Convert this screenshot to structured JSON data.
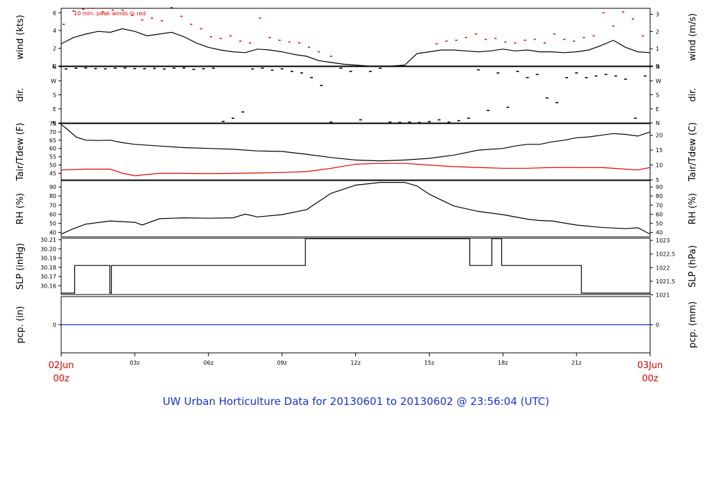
{
  "figure": {
    "title": "UW Urban Horticulture Data for 20130601  to  20130602 @ 23:56:04  (UTC)",
    "colors": {
      "title": "#1c2fd6",
      "date_label": "#e00000",
      "peak_wind": "#e00000",
      "dewpoint": "#e00000",
      "precip_line": "#1c2fd6",
      "line": "#000000"
    }
  },
  "x_axis": {
    "unit": "hours UTC",
    "range": [
      0,
      24
    ],
    "ticks": [
      {
        "x": 3,
        "label": "03z"
      },
      {
        "x": 6,
        "label": "06z"
      },
      {
        "x": 9,
        "label": "09z"
      },
      {
        "x": 12,
        "label": "12z"
      },
      {
        "x": 15,
        "label": "15z"
      },
      {
        "x": 18,
        "label": "18z"
      },
      {
        "x": 21,
        "label": "21z"
      }
    ],
    "start_label": {
      "date": "02Jun",
      "time": "00z"
    },
    "end_label": {
      "date": "03Jun",
      "time": "00z"
    }
  },
  "chart_data": [
    {
      "type": "line",
      "ylabel_left": "wind (kts)",
      "ylabel_right": "wind (m/s)",
      "annotation": "10 min. peak winds in red",
      "ylim": [
        0,
        6.5
      ],
      "left_ticks": [
        "0",
        "2",
        "4",
        "6"
      ],
      "right_ticks": [
        "0",
        "1",
        "2",
        "3"
      ],
      "series": [
        {
          "name": "wind speed",
          "x": [
            0,
            0.5,
            1,
            1.5,
            2,
            2.5,
            3,
            3.5,
            4,
            4.5,
            5,
            5.5,
            6,
            6.5,
            7,
            7.5,
            8,
            8.5,
            9,
            9.5,
            10,
            10.5,
            11,
            11.5,
            12,
            12.5,
            13,
            13.5,
            14,
            14.5,
            15,
            15.5,
            16,
            16.5,
            17,
            17.5,
            18,
            18.5,
            19,
            19.5,
            20,
            20.5,
            21,
            21.5,
            22,
            22.5,
            23,
            23.5,
            24
          ],
          "values": [
            2.5,
            3.2,
            3.6,
            3.9,
            3.8,
            4.2,
            3.9,
            3.4,
            3.6,
            3.8,
            3.3,
            2.6,
            2.1,
            1.8,
            1.6,
            1.5,
            1.9,
            1.8,
            1.6,
            1.3,
            1.1,
            0.6,
            0.4,
            0.2,
            0.1,
            0.0,
            0.0,
            0.0,
            0.1,
            1.4,
            1.6,
            1.8,
            1.8,
            1.7,
            1.6,
            1.7,
            1.9,
            1.7,
            1.8,
            1.6,
            1.6,
            1.5,
            1.6,
            1.8,
            2.3,
            2.9,
            2.1,
            1.6,
            1.5
          ]
        },
        {
          "name": "10 min. peak winds",
          "x": [
            0.1,
            0.5,
            0.9,
            1.3,
            1.7,
            2.1,
            2.5,
            2.9,
            3.3,
            3.7,
            4.1,
            4.5,
            4.9,
            5.3,
            5.7,
            6.1,
            6.5,
            6.9,
            7.3,
            7.7,
            8.1,
            8.5,
            8.9,
            9.3,
            9.7,
            10.1,
            10.5,
            11.0,
            15.3,
            15.7,
            16.1,
            16.5,
            16.9,
            17.3,
            17.7,
            18.1,
            18.5,
            18.9,
            19.3,
            19.7,
            20.1,
            20.5,
            20.9,
            21.3,
            21.7,
            22.1,
            22.5,
            22.9,
            23.3,
            23.7
          ],
          "values": [
            4.7,
            6.2,
            6.4,
            6.5,
            6.1,
            6.3,
            6.3,
            5.7,
            5.2,
            5.4,
            5.1,
            6.6,
            5.6,
            4.7,
            4.2,
            3.3,
            3.1,
            3.4,
            2.8,
            2.6,
            5.4,
            3.2,
            2.9,
            2.7,
            2.6,
            2.1,
            1.6,
            1.1,
            2.5,
            2.8,
            2.9,
            3.2,
            3.6,
            3.0,
            3.1,
            2.7,
            2.6,
            2.9,
            3.0,
            2.6,
            3.6,
            3.0,
            2.8,
            3.2,
            3.4,
            6.0,
            4.5,
            6.1,
            5.3,
            3.4
          ]
        }
      ]
    },
    {
      "type": "scatter",
      "ylabel_left": "dir.",
      "ylabel_right": "dir.",
      "ylim": [
        0,
        360
      ],
      "left_ticks": [
        "N",
        "W",
        "S",
        "E",
        "N"
      ],
      "right_ticks": [
        "N",
        "W",
        "S",
        "E",
        "N"
      ],
      "series": [
        {
          "name": "wind direction",
          "x": [
            0.2,
            0.6,
            1.0,
            1.4,
            1.8,
            2.2,
            2.6,
            3.0,
            3.4,
            3.8,
            4.2,
            4.6,
            5.0,
            5.4,
            5.8,
            6.2,
            6.6,
            7.0,
            7.4,
            7.8,
            8.2,
            8.6,
            9.0,
            9.4,
            9.8,
            10.2,
            10.6,
            11.0,
            11.4,
            11.8,
            12.2,
            12.6,
            13.0,
            13.4,
            13.8,
            14.2,
            14.6,
            15.0,
            15.4,
            15.8,
            16.2,
            16.6,
            17.0,
            17.4,
            17.8,
            18.2,
            18.6,
            19.0,
            19.4,
            19.8,
            20.2,
            20.6,
            21.0,
            21.4,
            21.8,
            22.2,
            22.6,
            23.0,
            23.4,
            23.8
          ],
          "values": [
            345,
            350,
            352,
            348,
            346,
            350,
            352,
            348,
            347,
            349,
            345,
            350,
            352,
            343,
            347,
            350,
            10,
            30,
            70,
            345,
            350,
            338,
            346,
            330,
            320,
            290,
            240,
            5,
            350,
            330,
            20,
            330,
            350,
            5,
            3,
            5,
            3,
            8,
            20,
            5,
            15,
            30,
            340,
            80,
            320,
            100,
            330,
            290,
            310,
            160,
            130,
            290,
            320,
            290,
            300,
            310,
            300,
            280,
            30,
            300
          ]
        }
      ]
    },
    {
      "type": "line",
      "ylabel_left": "Tair/Tdew (F)",
      "ylabel_right": "Tair/Tdew (C)",
      "ylim": [
        41,
        75
      ],
      "left_ticks": [
        "45",
        "50",
        "55",
        "60",
        "65",
        "70",
        "75"
      ],
      "right_ticks": [
        "5",
        "10",
        "15",
        "20"
      ],
      "series": [
        {
          "name": "Tair",
          "x": [
            0,
            0.3,
            0.6,
            1,
            1.5,
            2,
            2.5,
            3,
            4,
            5,
            6,
            7,
            8,
            9,
            10,
            11,
            12,
            13,
            14,
            15,
            16,
            17,
            18,
            18.5,
            19,
            19.5,
            20,
            20.5,
            21,
            21.5,
            22,
            22.5,
            23,
            23.5,
            24
          ],
          "values": [
            74.5,
            71,
            67,
            65,
            64.8,
            65,
            63.5,
            62.5,
            61.5,
            60.5,
            60,
            59.5,
            58.5,
            58.2,
            56.5,
            54.5,
            53,
            52.5,
            53,
            54,
            56,
            59,
            60,
            61.5,
            62.5,
            62.5,
            64,
            65,
            66.5,
            67,
            68,
            69,
            68.5,
            67.5,
            70
          ]
        },
        {
          "name": "Tdew",
          "x": [
            0,
            1,
            2,
            2.5,
            3,
            4,
            5,
            6,
            7,
            8,
            9,
            10,
            11,
            12,
            13,
            14,
            15,
            16,
            17,
            18,
            19,
            20,
            21,
            22,
            23,
            23.5,
            24
          ],
          "values": [
            47,
            47.5,
            47.5,
            45,
            43.5,
            45,
            45,
            44.8,
            45,
            45.2,
            45.5,
            46,
            48,
            50.5,
            51,
            51,
            50,
            49,
            48.5,
            48,
            48,
            48.5,
            48.5,
            48.5,
            47.5,
            47,
            48.5
          ]
        }
      ]
    },
    {
      "type": "line",
      "ylabel_left": "RH (%)",
      "ylabel_right": "RH (%)",
      "ylim": [
        35,
        97
      ],
      "left_ticks": [
        "40",
        "50",
        "60",
        "70",
        "80",
        "90"
      ],
      "right_ticks": [
        "40",
        "50",
        "60",
        "70",
        "80",
        "90"
      ],
      "series": [
        {
          "name": "RH",
          "x": [
            0,
            0.5,
            1,
            2,
            3,
            3.3,
            4,
            5,
            6,
            7,
            7.5,
            8,
            9,
            10,
            11,
            12,
            12.5,
            13,
            14,
            14.5,
            15,
            16,
            17,
            18,
            19,
            19.5,
            20,
            21,
            22,
            23,
            23.5,
            24
          ],
          "values": [
            38,
            44,
            49,
            52.5,
            51,
            48,
            55,
            56,
            55.5,
            56,
            60,
            57,
            59.5,
            65,
            83,
            92,
            93.5,
            95,
            95,
            91,
            82,
            69,
            63,
            59.5,
            54.5,
            53,
            52.5,
            48,
            45.5,
            44,
            45,
            38
          ]
        }
      ]
    },
    {
      "type": "line",
      "ylabel_left": "SLP (inHg)",
      "ylabel_right": "SLP (hPa)",
      "ylim": [
        30.1505,
        30.2115
      ],
      "left_ticks": [
        "30.16",
        "30.17",
        "30.18",
        "30.19",
        "30.20",
        "30.21"
      ],
      "right_ticks": [
        "1021",
        "1021.5",
        "1022",
        "1022.5",
        "1023"
      ],
      "series": [
        {
          "name": "SLP",
          "x": [
            0,
            0.55,
            0.55,
            1.98,
            1.98,
            2.05,
            2.05,
            9.95,
            9.95,
            16.65,
            16.65,
            17.55,
            17.55,
            17.95,
            17.95,
            21.2,
            21.2,
            24
          ],
          "values": [
            30.152,
            30.152,
            30.182,
            30.182,
            30.152,
            30.152,
            30.182,
            30.182,
            30.211,
            30.211,
            30.182,
            30.182,
            30.211,
            30.211,
            30.182,
            30.182,
            30.152,
            30.152
          ]
        }
      ]
    },
    {
      "type": "line",
      "ylabel_left": "pcp. (in)",
      "ylabel_right": "pcp. (mm)",
      "ylim": [
        -1,
        1
      ],
      "left_ticks": [
        "0"
      ],
      "right_ticks": [
        "0"
      ],
      "series": [
        {
          "name": "precipitation",
          "x": [
            0,
            24
          ],
          "values": [
            0,
            0
          ]
        }
      ]
    }
  ]
}
